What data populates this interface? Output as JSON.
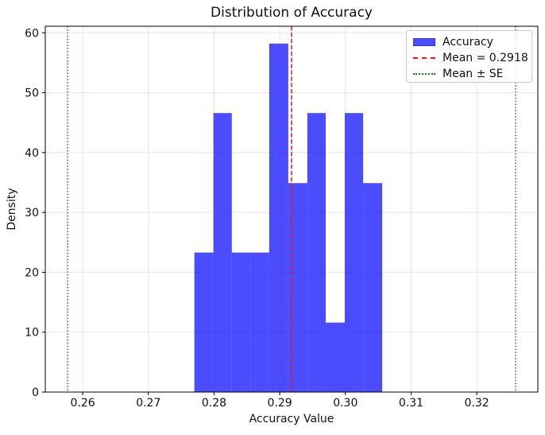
{
  "chart_data": {
    "type": "bar",
    "subtype": "histogram-density",
    "title": "Distribution of Accuracy",
    "xlabel": "Accuracy Value",
    "ylabel": "Density",
    "bin_edges": [
      0.277,
      0.2799,
      0.2827,
      0.2856,
      0.2884,
      0.2913,
      0.2942,
      0.297,
      0.2999,
      0.3027,
      0.3056
    ],
    "densities": [
      23.3,
      46.6,
      23.3,
      23.3,
      58.2,
      34.9,
      46.6,
      11.6,
      46.6,
      34.9
    ],
    "counts": [
      2,
      4,
      2,
      2,
      5,
      3,
      4,
      1,
      4,
      3
    ],
    "mean": 0.2918,
    "mean_minus_se": 0.2577,
    "mean_plus_se": 0.3259,
    "xlim": [
      0.2543,
      0.3293
    ],
    "ylim": [
      0,
      61.1
    ],
    "xticks": [
      0.26,
      0.27,
      0.28,
      0.29,
      0.3,
      0.31,
      0.32
    ],
    "xtick_labels": [
      "0.26",
      "0.27",
      "0.28",
      "0.29",
      "0.30",
      "0.31",
      "0.32"
    ],
    "yticks": [
      0,
      10,
      20,
      30,
      40,
      50,
      60
    ],
    "ytick_labels": [
      "0",
      "10",
      "20",
      "30",
      "40",
      "50",
      "60"
    ],
    "grid": true,
    "legend": {
      "position": "upper right",
      "entries": [
        {
          "label": "Accuracy",
          "swatch": "blue-patch-icon"
        },
        {
          "label": "Mean = 0.2918",
          "swatch": "red-dashed-line-icon"
        },
        {
          "label": "Mean ± SE",
          "swatch": "green-dotted-line-icon"
        }
      ]
    },
    "colors": {
      "bar": "#0000ff",
      "bar_rendered": "#4d4dff",
      "mean_line": "#ff0f0f",
      "se_line": "#128012",
      "grid": "#b0b0b0",
      "axis": "#000000",
      "background": "#ffffff",
      "text": "#111111"
    }
  }
}
